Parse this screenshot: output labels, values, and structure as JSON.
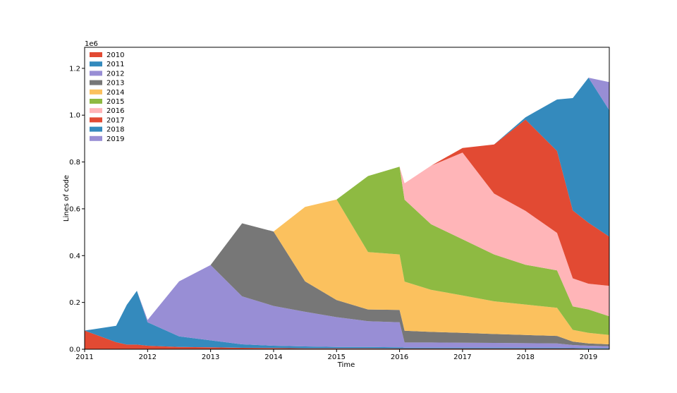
{
  "chart_data": {
    "type": "area",
    "stacked": true,
    "xlabel": "Time",
    "ylabel": "Lines of code",
    "offset_label": "1e6",
    "xlim": [
      2011.0,
      2019.33
    ],
    "ylim": [
      0,
      1.29
    ],
    "x_ticks": [
      2011,
      2012,
      2013,
      2014,
      2015,
      2016,
      2017,
      2018,
      2019
    ],
    "x_tick_labels": [
      "2011",
      "2012",
      "2013",
      "2014",
      "2015",
      "2016",
      "2017",
      "2018",
      "2019"
    ],
    "y_ticks": [
      0.0,
      0.2,
      0.4,
      0.6,
      0.8,
      1.0,
      1.2
    ],
    "y_tick_labels": [
      "0.0",
      "0.2",
      "0.4",
      "0.6",
      "0.8",
      "1.0",
      "1.2"
    ],
    "legend_position": "top-left",
    "grid": false,
    "x": [
      2011.0,
      2011.5,
      2011.67,
      2011.83,
      2012.0,
      2012.5,
      2013.0,
      2013.5,
      2014.0,
      2014.5,
      2015.0,
      2015.5,
      2016.0,
      2016.08,
      2016.5,
      2017.0,
      2017.5,
      2018.0,
      2018.5,
      2018.75,
      2019.0,
      2019.33
    ],
    "series": [
      {
        "name": "2010",
        "color": "#E24A33",
        "values": [
          0.08,
          0.03,
          0.02,
          0.02,
          0.015,
          0.01,
          0.008,
          0.006,
          0.005,
          0.004,
          0.004,
          0.004,
          0.003,
          0.003,
          0.003,
          0.003,
          0.003,
          0.003,
          0.003,
          0.003,
          0.002,
          0.002
        ]
      },
      {
        "name": "2011",
        "color": "#348ABD",
        "values": [
          0.0,
          0.07,
          0.17,
          0.23,
          0.1,
          0.045,
          0.03,
          0.015,
          0.01,
          0.008,
          0.006,
          0.006,
          0.005,
          0.004,
          0.004,
          0.004,
          0.004,
          0.004,
          0.004,
          0.003,
          0.003,
          0.003
        ]
      },
      {
        "name": "2012",
        "color": "#988ED5",
        "values": [
          0.0,
          0.0,
          0.0,
          0.0,
          0.01,
          0.235,
          0.322,
          0.205,
          0.17,
          0.148,
          0.127,
          0.11,
          0.107,
          0.022,
          0.022,
          0.021,
          0.02,
          0.019,
          0.018,
          0.012,
          0.01,
          0.008
        ]
      },
      {
        "name": "2013",
        "color": "#777777",
        "values": [
          0.0,
          0.0,
          0.0,
          0.0,
          0.0,
          0.0,
          0.0,
          0.312,
          0.318,
          0.13,
          0.073,
          0.05,
          0.053,
          0.05,
          0.045,
          0.042,
          0.038,
          0.035,
          0.032,
          0.015,
          0.01,
          0.008
        ]
      },
      {
        "name": "2014",
        "color": "#FBC15E",
        "values": [
          0.0,
          0.0,
          0.0,
          0.0,
          0.0,
          0.0,
          0.0,
          0.0,
          0.0,
          0.318,
          0.43,
          0.245,
          0.237,
          0.21,
          0.18,
          0.16,
          0.14,
          0.13,
          0.12,
          0.05,
          0.045,
          0.04
        ]
      },
      {
        "name": "2015",
        "color": "#8EBA42",
        "values": [
          0.0,
          0.0,
          0.0,
          0.0,
          0.0,
          0.0,
          0.0,
          0.0,
          0.0,
          0.0,
          0.0,
          0.325,
          0.375,
          0.35,
          0.28,
          0.24,
          0.2,
          0.17,
          0.16,
          0.1,
          0.1,
          0.08
        ]
      },
      {
        "name": "2016",
        "color": "#FFB5B8",
        "values": [
          0.0,
          0.0,
          0.0,
          0.0,
          0.0,
          0.0,
          0.0,
          0.0,
          0.0,
          0.0,
          0.0,
          0.0,
          0.0,
          0.07,
          0.25,
          0.37,
          0.26,
          0.23,
          0.16,
          0.12,
          0.11,
          0.13
        ]
      },
      {
        "name": "2017",
        "color": "#E24A33",
        "values": [
          0.0,
          0.0,
          0.0,
          0.0,
          0.0,
          0.0,
          0.0,
          0.0,
          0.0,
          0.0,
          0.0,
          0.0,
          0.0,
          0.0,
          0.0,
          0.02,
          0.21,
          0.39,
          0.35,
          0.29,
          0.26,
          0.21
        ]
      },
      {
        "name": "2018",
        "color": "#348ABD",
        "values": [
          0.0,
          0.0,
          0.0,
          0.0,
          0.0,
          0.0,
          0.0,
          0.0,
          0.0,
          0.0,
          0.0,
          0.0,
          0.0,
          0.0,
          0.0,
          0.0,
          0.0,
          0.01,
          0.22,
          0.48,
          0.62,
          0.54
        ]
      },
      {
        "name": "2019",
        "color": "#988ED5",
        "values": [
          0.0,
          0.0,
          0.0,
          0.0,
          0.0,
          0.0,
          0.0,
          0.0,
          0.0,
          0.0,
          0.0,
          0.0,
          0.0,
          0.0,
          0.0,
          0.0,
          0.0,
          0.0,
          0.0,
          0.0,
          0.0,
          0.12
        ]
      }
    ]
  }
}
